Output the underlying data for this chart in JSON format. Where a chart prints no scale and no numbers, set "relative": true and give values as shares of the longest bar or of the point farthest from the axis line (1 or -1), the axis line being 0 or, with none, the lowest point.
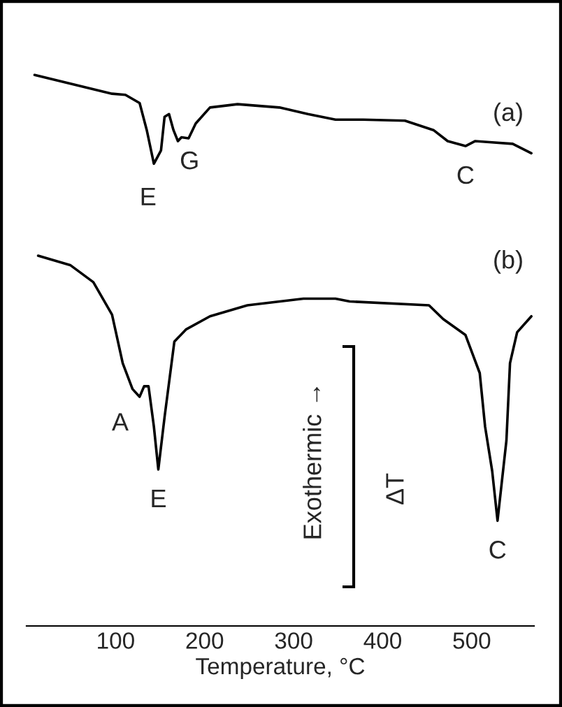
{
  "chart_data": {
    "type": "line",
    "relative": true,
    "xlabel": "Temperature, °C",
    "xlim": [
      0,
      570
    ],
    "xticks": [
      100,
      200,
      300,
      400,
      500
    ],
    "grid": false,
    "legend": false,
    "tick_labels": "x",
    "series": [
      {
        "name": "(a)",
        "color": "#000000",
        "x": [
          9,
          96,
          111,
          127,
          135,
          143,
          151,
          155,
          160,
          165,
          170,
          174,
          182,
          190,
          206,
          237,
          284,
          316,
          347,
          378,
          425,
          457,
          473,
          493,
          504,
          520,
          546,
          567
        ],
        "values": [
          1.0,
          0.966,
          0.964,
          0.949,
          0.9,
          0.839,
          0.863,
          0.924,
          0.929,
          0.9,
          0.88,
          0.887,
          0.885,
          0.912,
          0.941,
          0.947,
          0.941,
          0.929,
          0.919,
          0.919,
          0.917,
          0.9,
          0.88,
          0.871,
          0.88,
          0.878,
          0.875,
          0.858
        ]
      },
      {
        "name": "(b)",
        "color": "#000000",
        "x": [
          13,
          49,
          75,
          96,
          108,
          119,
          127,
          132,
          137,
          143,
          148,
          155,
          166,
          179,
          206,
          248,
          311,
          347,
          363,
          452,
          468,
          493,
          509,
          515,
          523,
          529,
          539,
          543,
          551,
          567
        ],
        "values": [
          0.672,
          0.655,
          0.624,
          0.565,
          0.477,
          0.43,
          0.416,
          0.435,
          0.435,
          0.362,
          0.284,
          0.379,
          0.516,
          0.538,
          0.562,
          0.582,
          0.594,
          0.594,
          0.589,
          0.582,
          0.557,
          0.528,
          0.459,
          0.362,
          0.281,
          0.191,
          0.337,
          0.477,
          0.533,
          0.562
        ]
      }
    ],
    "annotations": [
      {
        "text": "E",
        "x": 143,
        "y": 0.839
      },
      {
        "text": "G",
        "x": 170,
        "y": 0.88
      },
      {
        "text": "C",
        "x": 493,
        "y": 0.871
      },
      {
        "text": "A",
        "x": 127,
        "y": 0.416
      },
      {
        "text": "E",
        "x": 148,
        "y": 0.284
      },
      {
        "text": "C",
        "x": 529,
        "y": 0.191
      },
      "Exothermic →",
      "ΔT"
    ]
  }
}
